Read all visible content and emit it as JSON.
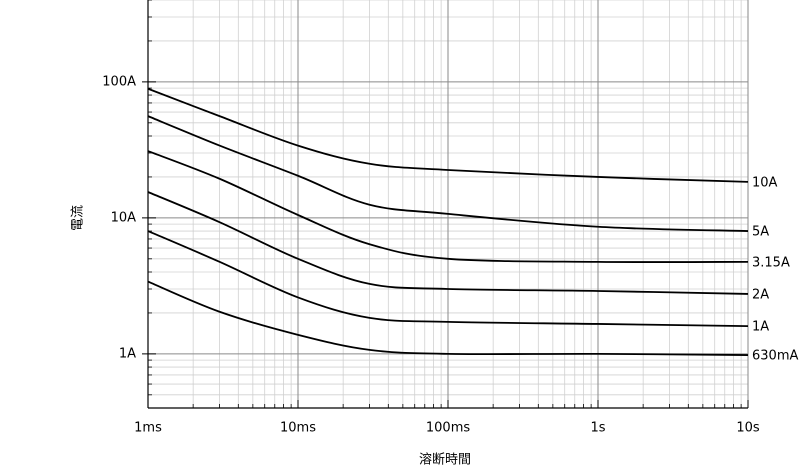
{
  "chart_data": {
    "type": "line",
    "x_label": "溶断時間",
    "y_label": "電流",
    "x": [
      0.001,
      0.003,
      0.01,
      0.03,
      0.1,
      1,
      10
    ],
    "series": [
      {
        "name": "10A",
        "color": "#000000",
        "values": [
          89,
          56,
          34,
          25,
          22.5,
          20,
          18.4
        ]
      },
      {
        "name": "5A",
        "color": "#000000",
        "values": [
          56,
          34,
          20.4,
          12.5,
          10.7,
          8.6,
          8.0
        ]
      },
      {
        "name": "3.15A",
        "color": "#000000",
        "values": [
          31,
          19.4,
          10.5,
          6.4,
          5.0,
          4.75,
          4.75
        ]
      },
      {
        "name": "2A",
        "color": "#000000",
        "values": [
          15.5,
          9.3,
          5.0,
          3.27,
          3.0,
          2.9,
          2.76
        ]
      },
      {
        "name": "1A",
        "color": "#000000",
        "values": [
          8.0,
          4.75,
          2.6,
          1.84,
          1.72,
          1.66,
          1.6
        ]
      },
      {
        "name": "630mA",
        "color": "#000000",
        "values": [
          3.4,
          2.04,
          1.38,
          1.07,
          1.0,
          1.0,
          0.98
        ]
      }
    ],
    "x_log": true,
    "y_log": true,
    "grid": true,
    "xlim": [
      0.001,
      10
    ],
    "xticks": [
      {
        "value": 0.001,
        "label": "1ms"
      },
      {
        "value": 0.01,
        "label": "10ms"
      },
      {
        "value": 0.1,
        "label": "100ms"
      },
      {
        "value": 1,
        "label": "1s"
      },
      {
        "value": 10,
        "label": "10s"
      }
    ],
    "ylim": [
      0.4,
      400
    ],
    "yticks": [
      {
        "value": 1,
        "label": "1A"
      },
      {
        "value": 10,
        "label": "10A"
      },
      {
        "value": 100,
        "label": "100A"
      }
    ]
  }
}
